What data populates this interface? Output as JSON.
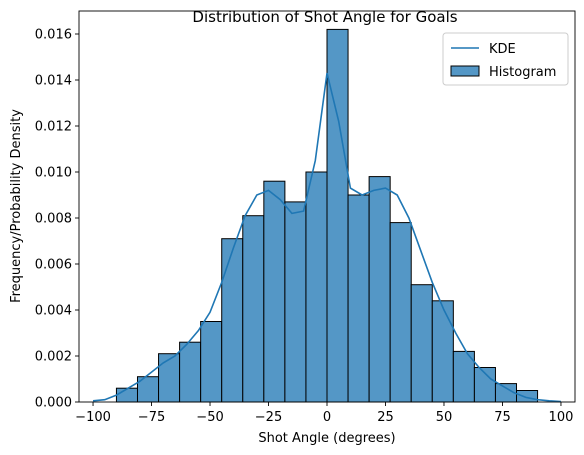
{
  "chart_data": {
    "type": "bar",
    "title": "Distribution of Shot Angle for Goals",
    "xlabel": "Shot Angle (degrees)",
    "ylabel": "Frequency/Probability Density",
    "xlim": [
      -106,
      106
    ],
    "ylim": [
      0,
      0.017
    ],
    "xticks": [
      -100,
      -75,
      -50,
      -25,
      0,
      25,
      50,
      75,
      100
    ],
    "xtick_labels": [
      "−100",
      "−75",
      "−50",
      "−25",
      "0",
      "25",
      "50",
      "75",
      "100"
    ],
    "yticks": [
      0,
      0.002,
      0.004,
      0.006,
      0.008,
      0.01,
      0.012,
      0.014,
      0.016
    ],
    "ytick_labels": [
      "0.000",
      "0.002",
      "0.004",
      "0.006",
      "0.008",
      "0.010",
      "0.012",
      "0.014",
      "0.016"
    ],
    "grid": false,
    "legend_position": "top-right",
    "colors": {
      "bar_fill": "#5497c6",
      "bar_edge": "#000000",
      "kde_line": "#1f77b4"
    },
    "histogram": {
      "name": "Histogram",
      "bin_edges": [
        -90,
        -81,
        -72,
        -63,
        -54,
        -45,
        -36,
        -27,
        -18,
        -9,
        0,
        9,
        18,
        27,
        36,
        45,
        54,
        63,
        72,
        81,
        90
      ],
      "values": [
        0.0006,
        0.0011,
        0.0021,
        0.0026,
        0.0035,
        0.0071,
        0.0081,
        0.0096,
        0.0087,
        0.01,
        0.0162,
        0.009,
        0.0098,
        0.0078,
        0.0051,
        0.0044,
        0.0022,
        0.0015,
        0.0008,
        0.0005
      ]
    },
    "kde": {
      "name": "KDE",
      "x": [
        -100,
        -95,
        -90,
        -85,
        -80,
        -75,
        -70,
        -65,
        -60,
        -55,
        -50,
        -45,
        -40,
        -35,
        -30,
        -25,
        -20,
        -15,
        -10,
        -5,
        0,
        5,
        10,
        15,
        20,
        25,
        30,
        35,
        40,
        45,
        50,
        55,
        60,
        65,
        70,
        75,
        80,
        85,
        90,
        95,
        100
      ],
      "y": [
        5e-05,
        0.0001,
        0.0003,
        0.0006,
        0.0009,
        0.0013,
        0.0017,
        0.002,
        0.0025,
        0.0031,
        0.0039,
        0.0052,
        0.0067,
        0.0081,
        0.009,
        0.0092,
        0.0088,
        0.0082,
        0.0083,
        0.0105,
        0.0143,
        0.0122,
        0.0093,
        0.009,
        0.0092,
        0.0093,
        0.009,
        0.008,
        0.0066,
        0.0052,
        0.004,
        0.003,
        0.0021,
        0.0015,
        0.001,
        0.0007,
        0.0004,
        0.0002,
        0.0001,
        5e-05,
        2e-05
      ]
    }
  }
}
